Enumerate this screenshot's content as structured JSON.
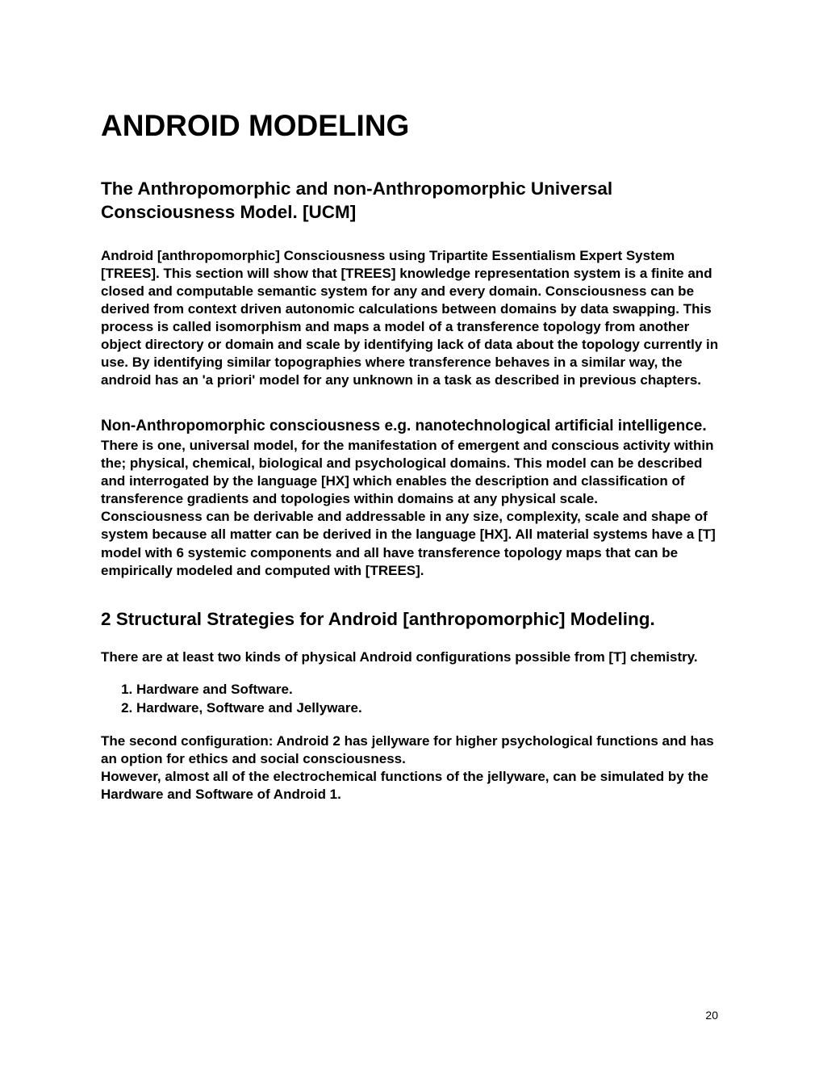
{
  "page": {
    "title": "ANDROID  MODELING",
    "page_number": "20"
  },
  "sections": {
    "s1": {
      "heading": "The Anthropomorphic and non-Anthropomorphic Universal Consciousness Model. [UCM]",
      "p1": "Android [anthropomorphic] Consciousness using Tripartite Essentialism Expert System [TREES]. This section will show that [TREES] knowledge representation system is a finite and closed and computable semantic system for any and every domain. Consciousness can be derived from context driven autonomic calculations between domains by data swapping. This  process is called isomorphism and maps a model of a transference topology from another object directory or domain and scale by identifying lack of data about the topology currently in use. By identifying similar topographies where transference behaves in a similar way, the android has an 'a priori' model for any unknown in a task as described in previous chapters."
    },
    "s2": {
      "heading": "Non-Anthropomorphic consciousness e.g. nanotechnological artificial intelligence.",
      "p1": "There is one, universal model, for the manifestation of emergent and conscious activity within the; physical, chemical, biological and psychological domains. This model can be described and interrogated by the language [HX] which enables the description and classification of transference gradients and topologies within domains at any physical scale.",
      "p2": "Consciousness can be derivable and addressable in any size, complexity, scale and shape of system because all matter can be derived in the language [HX]. All material systems have a [T] model with 6 systemic components and all have  transference topology maps that can be empirically modeled and computed with [TREES]."
    },
    "s3": {
      "heading": "2 Structural Strategies for Android [anthropomorphic] Modeling.",
      "p1": "There are at least two kinds of physical Android configurations possible from [T] chemistry.",
      "list": {
        "item1": "Hardware and Software.",
        "item2": "Hardware, Software and Jellyware."
      },
      "p2": "The second configuration: Android 2  has jellyware for higher psychological functions and has an option for ethics and social consciousness.",
      "p3": "However, almost all of the electrochemical functions of the jellyware, can be simulated by the Hardware and Software of Android 1."
    }
  }
}
